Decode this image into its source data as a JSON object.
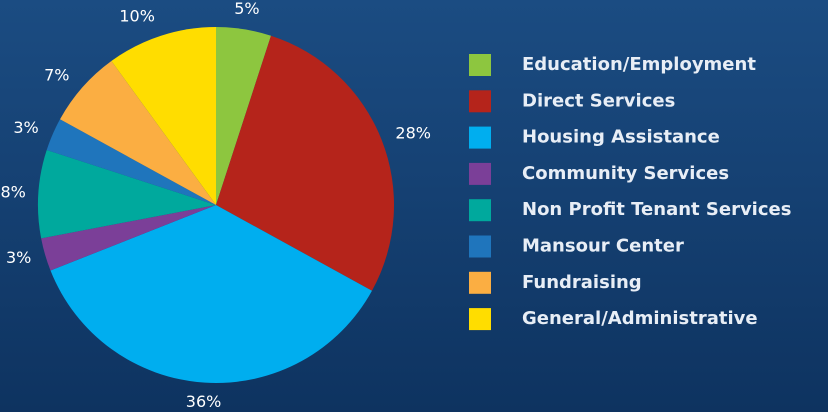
{
  "chart_data": {
    "type": "pie",
    "categories": [
      "Education/Employment",
      "Direct Services",
      "Housing Assistance",
      "Community Services",
      "Non Profit Tenant Services",
      "Mansour Center",
      "Fundraising",
      "General/Administrative"
    ],
    "values": [
      5,
      28,
      36,
      3,
      8,
      3,
      7,
      10
    ],
    "value_labels": [
      "5%",
      "28%",
      "36%",
      "3%",
      "8%",
      "3%",
      "7%",
      "10%"
    ],
    "colors": [
      "#8dc63f",
      "#b5241b",
      "#00aeef",
      "#7b3f98",
      "#00a99d",
      "#1f75bc",
      "#fbae42",
      "#ffdd00"
    ],
    "legend": "right"
  }
}
